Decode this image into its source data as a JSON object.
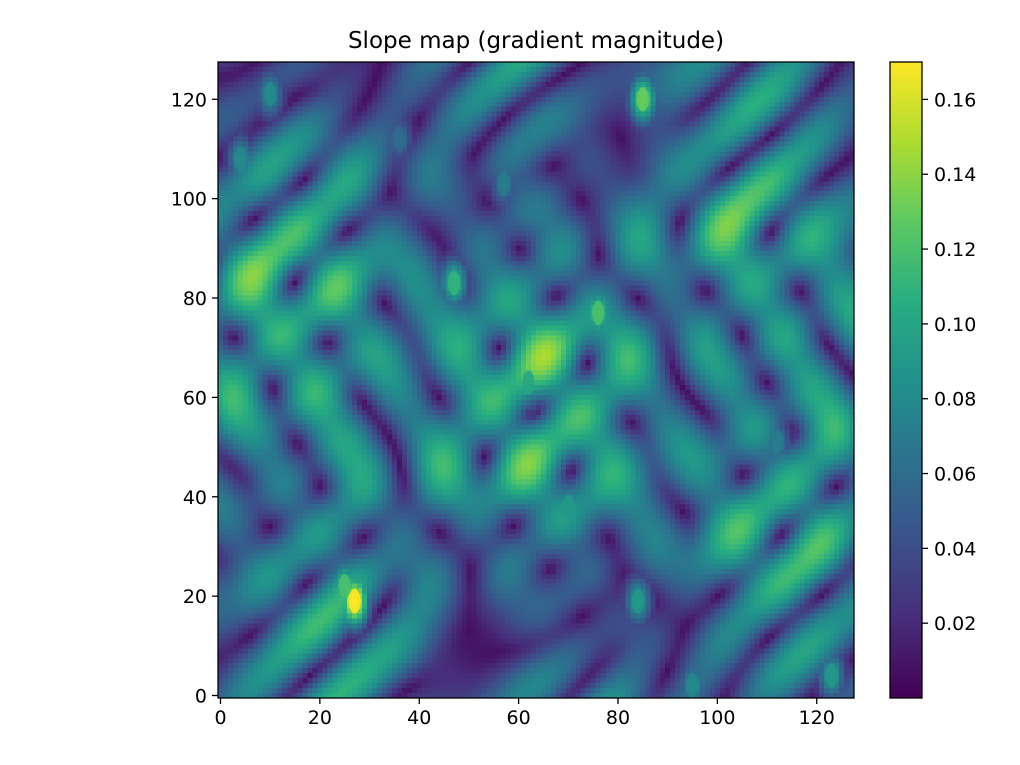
{
  "chart_data": [
    {
      "type": "heatmap",
      "title": "Slope map (gradient magnitude)",
      "xlabel": "",
      "ylabel": "",
      "xlim": [
        0,
        127
      ],
      "ylim": [
        0,
        127
      ],
      "grid_size": [
        128,
        128
      ],
      "origin": "lower",
      "colormap": "viridis",
      "x_ticks": [
        "0",
        "20",
        "40",
        "60",
        "80",
        "100",
        "120"
      ],
      "y_ticks": [
        "0",
        "20",
        "40",
        "60",
        "80",
        "100",
        "120"
      ],
      "x_tick_values": [
        0,
        20,
        40,
        60,
        80,
        100,
        120
      ],
      "y_tick_values": [
        0,
        20,
        40,
        60,
        80,
        100,
        120
      ],
      "grid": false,
      "features": [
        {
          "x": 27,
          "y": 19,
          "value": 0.17
        },
        {
          "x": 25,
          "y": 22,
          "value": 0.12
        },
        {
          "x": 85,
          "y": 120,
          "value": 0.13
        },
        {
          "x": 76,
          "y": 77,
          "value": 0.12
        },
        {
          "x": 62,
          "y": 63,
          "value": 0.1
        },
        {
          "x": 47,
          "y": 83,
          "value": 0.11
        },
        {
          "x": 70,
          "y": 38,
          "value": 0.09
        },
        {
          "x": 84,
          "y": 19,
          "value": 0.09
        },
        {
          "x": 10,
          "y": 121,
          "value": 0.08
        },
        {
          "x": 4,
          "y": 108,
          "value": 0.08
        },
        {
          "x": 95,
          "y": 2,
          "value": 0.08
        },
        {
          "x": 123,
          "y": 4,
          "value": 0.09
        },
        {
          "x": 112,
          "y": 51,
          "value": 0.07
        },
        {
          "x": 57,
          "y": 103,
          "value": 0.07
        },
        {
          "x": 36,
          "y": 112,
          "value": 0.06
        }
      ],
      "colorbar": {
        "min": 0.0,
        "max": 0.17,
        "ticks": [
          "0.02",
          "0.04",
          "0.06",
          "0.08",
          "0.10",
          "0.12",
          "0.14",
          "0.16"
        ],
        "tick_values": [
          0.02,
          0.04,
          0.06,
          0.08,
          0.1,
          0.12,
          0.14,
          0.16
        ]
      }
    }
  ]
}
